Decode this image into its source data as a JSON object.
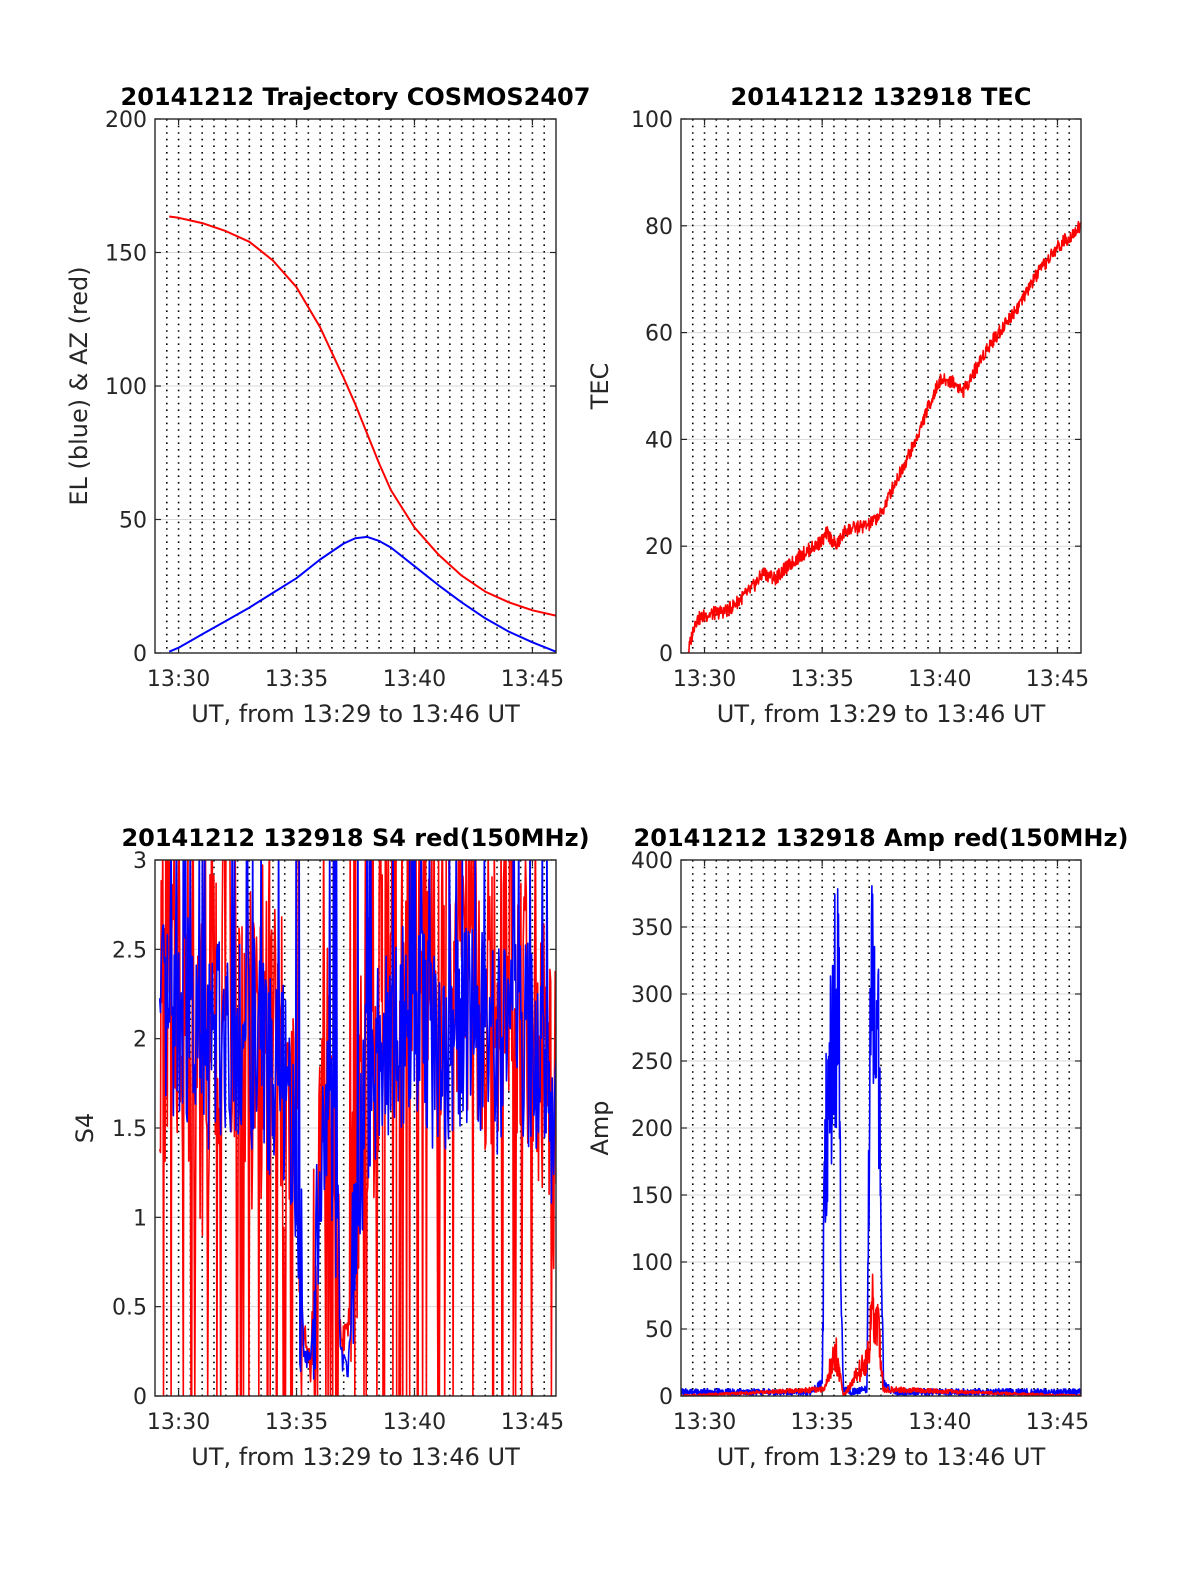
{
  "colors": {
    "red": "#ff0000",
    "blue": "#0000ff",
    "grid": "#d9d9d9",
    "axis": "#262626"
  },
  "chart_data": [
    {
      "type": "line",
      "title": "20141212 Trajectory COSMOS2407",
      "xlabel": "UT, from 13:29 to 13:46 UT",
      "ylabel": "EL (blue) & AZ (red)",
      "x_unit": "minutes (UT)",
      "xlim": [
        "13:29",
        "13:46"
      ],
      "ylim": [
        0,
        200
      ],
      "xticks": [
        "13:30",
        "13:35",
        "13:40",
        "13:45"
      ],
      "yticks": [
        "0",
        "50",
        "100",
        "150",
        "200"
      ],
      "grid": true,
      "series": [
        {
          "color": "#ff0000",
          "x": [
            "13:29.6",
            "13:30",
            "13:31",
            "13:32",
            "13:33",
            "13:34",
            "13:35",
            "13:36",
            "13:37",
            "13:37.5",
            "13:38",
            "13:38.5",
            "13:39",
            "13:40",
            "13:41",
            "13:42",
            "13:43",
            "13:44",
            "13:45",
            "13:46"
          ],
          "values": [
            163.5,
            163,
            161,
            158,
            154,
            147,
            137,
            122,
            103,
            93,
            82,
            71,
            61,
            47,
            37,
            29,
            23,
            19,
            16,
            14
          ]
        },
        {
          "color": "#0000ff",
          "x": [
            "13:29.6",
            "13:30",
            "13:31",
            "13:32",
            "13:33",
            "13:34",
            "13:35",
            "13:36",
            "13:37",
            "13:37.5",
            "13:38",
            "13:38.5",
            "13:39",
            "13:40",
            "13:41",
            "13:42",
            "13:43",
            "13:44",
            "13:45",
            "13:46"
          ],
          "values": [
            0.5,
            2,
            7,
            12,
            17,
            22.5,
            28,
            35,
            41,
            43,
            43.5,
            42,
            39.5,
            32.5,
            25.5,
            19,
            13,
            8,
            4,
            0.5
          ]
        }
      ]
    },
    {
      "type": "line",
      "title": "20141212 132918 TEC",
      "xlabel": "UT, from 13:29 to 13:46 UT",
      "ylabel": "TEC",
      "x_unit": "minutes (UT)",
      "xlim": [
        "13:29",
        "13:46"
      ],
      "ylim": [
        0,
        100
      ],
      "xticks": [
        "13:30",
        "13:35",
        "13:40",
        "13:45"
      ],
      "yticks": [
        "0",
        "20",
        "40",
        "60",
        "80",
        "100"
      ],
      "grid": true,
      "series": [
        {
          "color": "#ff0000",
          "x": [
            "13:29.3",
            "13:29.6",
            "13:30",
            "13:31",
            "13:32",
            "13:32.5",
            "13:33",
            "13:34",
            "13:35",
            "13:35.2",
            "13:35.6",
            "13:36",
            "13:37",
            "13:37.5",
            "13:38",
            "13:39",
            "13:39.5",
            "13:40",
            "13:40.5",
            "13:41",
            "13:42",
            "13:43",
            "13:43.5",
            "13:44",
            "13:45",
            "13:46"
          ],
          "values": [
            0,
            6,
            7,
            8,
            12,
            15,
            14,
            18,
            21,
            22.5,
            20,
            23,
            24,
            26,
            31,
            40,
            46,
            51,
            51,
            49,
            57,
            63,
            66,
            70,
            76,
            80
          ]
        }
      ]
    },
    {
      "type": "line",
      "title": "20141212 132918 S4 red(150MHz)",
      "xlabel": "UT, from 13:29 to 13:46 UT",
      "ylabel": "S4",
      "x_unit": "minutes (UT)",
      "xlim": [
        "13:29",
        "13:46"
      ],
      "ylim": [
        0,
        3
      ],
      "xticks": [
        "13:30",
        "13:35",
        "13:40",
        "13:45"
      ],
      "yticks": [
        "0",
        "0.5",
        "1",
        "1.5",
        "2",
        "2.5",
        "3"
      ],
      "grid": true,
      "series": [
        {
          "color": "#ff0000",
          "x": [
            "13:29.2",
            "13:30",
            "13:31",
            "13:32",
            "13:33",
            "13:34",
            "13:34.5",
            "13:35",
            "13:35.3",
            "13:35.6",
            "13:35.9",
            "13:36.2",
            "13:36.6",
            "13:36.9",
            "13:37.2",
            "13:37.5",
            "13:38",
            "13:39",
            "13:40",
            "13:41",
            "13:42",
            "13:43",
            "13:44",
            "13:45",
            "13:46"
          ],
          "values": [
            2.1,
            2.3,
            1.8,
            2.5,
            1.9,
            2.2,
            1.6,
            1.3,
            0.3,
            0.2,
            1.2,
            1.8,
            1.1,
            0.3,
            0.4,
            1.0,
            1.9,
            2.4,
            2.6,
            2.3,
            2.7,
            2.1,
            2.5,
            2.2,
            1.5
          ]
        },
        {
          "color": "#0000ff",
          "x": [
            "13:29.2",
            "13:30",
            "13:31",
            "13:32",
            "13:33",
            "13:34",
            "13:34.5",
            "13:35",
            "13:35.3",
            "13:35.6",
            "13:35.9",
            "13:36.2",
            "13:36.6",
            "13:36.9",
            "13:37.2",
            "13:37.5",
            "13:38",
            "13:39",
            "13:40",
            "13:41",
            "13:42",
            "13:43",
            "13:44",
            "13:45",
            "13:46"
          ],
          "values": [
            2.0,
            2.2,
            1.9,
            2.1,
            2.0,
            1.8,
            1.7,
            1.2,
            0.3,
            0.15,
            1.0,
            1.6,
            1.2,
            0.2,
            0.15,
            0.9,
            1.8,
            2.0,
            2.2,
            1.9,
            2.1,
            2.0,
            1.9,
            2.0,
            1.6
          ]
        }
      ]
    },
    {
      "type": "line",
      "title": "20141212 132918 Amp red(150MHz)",
      "xlabel": "UT, from 13:29 to 13:46 UT",
      "ylabel": "Amp",
      "x_unit": "minutes (UT)",
      "xlim": [
        "13:29",
        "13:46"
      ],
      "ylim": [
        0,
        400
      ],
      "xticks": [
        "13:30",
        "13:35",
        "13:40",
        "13:45"
      ],
      "yticks": [
        "0",
        "50",
        "100",
        "150",
        "200",
        "250",
        "300",
        "350",
        "400"
      ],
      "grid": true,
      "series": [
        {
          "color": "#0000ff",
          "x": [
            "13:29",
            "13:34.5",
            "13:35.0",
            "13:35.1",
            "13:35.2",
            "13:35.4",
            "13:35.6",
            "13:35.7",
            "13:35.8",
            "13:35.9",
            "13:36.2",
            "13:36.9",
            "13:37.0",
            "13:37.1",
            "13:37.2",
            "13:37.4",
            "13:37.5",
            "13:37.6",
            "13:38",
            "13:46"
          ],
          "values": [
            3,
            3,
            10,
            160,
            205,
            250,
            300,
            337,
            100,
            5,
            3,
            5,
            200,
            307,
            260,
            270,
            150,
            10,
            3,
            3
          ]
        },
        {
          "color": "#ff0000",
          "x": [
            "13:29",
            "13:35.1",
            "13:35.3",
            "13:35.6",
            "13:35.8",
            "13:35.9",
            "13:37.0",
            "13:37.1",
            "13:37.2",
            "13:37.4",
            "13:37.6",
            "13:46"
          ],
          "values": [
            0,
            5,
            20,
            30,
            10,
            0,
            30,
            85,
            60,
            45,
            5,
            0
          ]
        }
      ]
    }
  ]
}
